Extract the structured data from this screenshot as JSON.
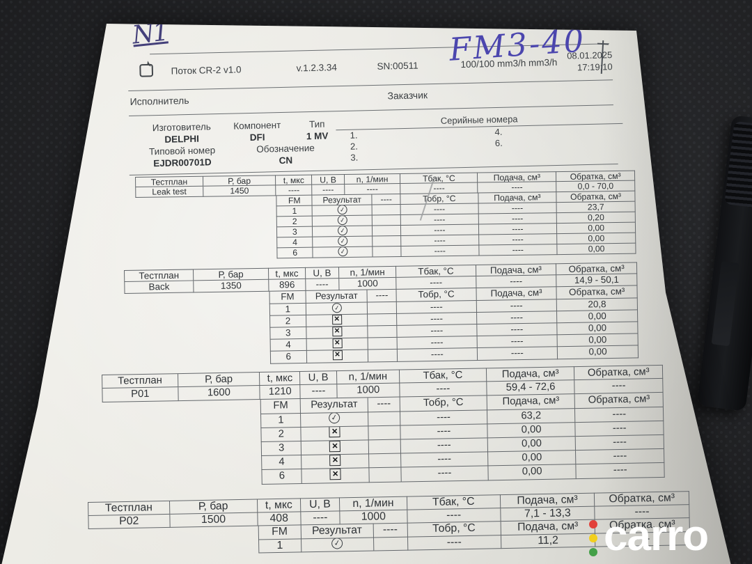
{
  "annotations": {
    "top_left": "N1",
    "top_right": "FM3-40"
  },
  "header": {
    "app": "Поток CR-2 v1.0",
    "version": "v.1.2.3.34",
    "serial": "SN:00511",
    "flow": "100/100 mm3/h mm3/h",
    "date": "08.01.2025",
    "time": "17:19:10",
    "executor_label": "Исполнитель",
    "customer_label": "Заказчик"
  },
  "component": {
    "manufacturer_label": "Изготовитель",
    "component_label": "Компонент",
    "type_label": "Тип",
    "manufacturer": "DELPHI",
    "component": "DFI",
    "type": "1 MV",
    "type_number_label": "Типовой номер",
    "designation_label": "Обозначение",
    "type_number": "EJDR00701D",
    "designation": "CN",
    "serial_numbers_label": "Серийные номера",
    "serial_rows": [
      [
        "1.",
        "4."
      ],
      [
        "2.",
        "6."
      ],
      [
        "3.",
        ""
      ]
    ]
  },
  "table_headers": {
    "main": [
      "Тестплан",
      "Р, бар",
      "t, мкс",
      "U, В",
      "n, 1/мин",
      "Тбак, °С",
      "Подача, см³",
      "Обратка, см³"
    ],
    "sub": [
      "FM",
      "Результат",
      "----",
      "Тобр, °С",
      "Подача, см³",
      "Обратка, см³"
    ]
  },
  "icons": {
    "pass": "✓",
    "fail": "✕"
  },
  "tables": [
    {
      "id": "leak-test",
      "main_row": [
        "Leak test",
        "1450",
        "----",
        "----",
        "----",
        "----",
        "----",
        "0,0 - 70,0"
      ],
      "rows": [
        [
          "1",
          "pass",
          "",
          "----",
          "----",
          "23,7"
        ],
        [
          "2",
          "pass",
          "",
          "----",
          "----",
          "0,20"
        ],
        [
          "3",
          "pass",
          "",
          "----",
          "----",
          "0,00"
        ],
        [
          "4",
          "pass",
          "",
          "----",
          "----",
          "0,00"
        ],
        [
          "6",
          "pass",
          "",
          "----",
          "----",
          "0,00"
        ]
      ]
    },
    {
      "id": "back",
      "main_row": [
        "Back",
        "1350",
        "896",
        "----",
        "1000",
        "----",
        "----",
        "14,9 - 50,1"
      ],
      "rows": [
        [
          "1",
          "pass",
          "",
          "----",
          "----",
          "20,8"
        ],
        [
          "2",
          "fail",
          "",
          "----",
          "----",
          "0,00"
        ],
        [
          "3",
          "fail",
          "",
          "----",
          "----",
          "0,00"
        ],
        [
          "4",
          "fail",
          "",
          "----",
          "----",
          "0,00"
        ],
        [
          "6",
          "fail",
          "",
          "----",
          "----",
          "0,00"
        ]
      ]
    },
    {
      "id": "p01",
      "main_row": [
        "P01",
        "1600",
        "1210",
        "----",
        "1000",
        "----",
        "59,4 - 72,6",
        "----"
      ],
      "rows": [
        [
          "1",
          "pass",
          "",
          "----",
          "63,2",
          "----"
        ],
        [
          "2",
          "fail",
          "",
          "----",
          "0,00",
          "----"
        ],
        [
          "3",
          "fail",
          "",
          "----",
          "0,00",
          "----"
        ],
        [
          "4",
          "fail",
          "",
          "----",
          "0,00",
          "----"
        ],
        [
          "6",
          "fail",
          "",
          "----",
          "0,00",
          "----"
        ]
      ]
    },
    {
      "id": "p02",
      "main_row": [
        "P02",
        "1500",
        "408",
        "----",
        "1000",
        "----",
        "7,1 - 13,3",
        "----"
      ],
      "rows": [
        [
          "1",
          "pass",
          "",
          "----",
          "11,2",
          "----"
        ]
      ]
    }
  ],
  "watermark": {
    "text": "carro",
    "dot_colors": [
      "#e2413a",
      "#f2cf1d",
      "#43a047"
    ]
  }
}
